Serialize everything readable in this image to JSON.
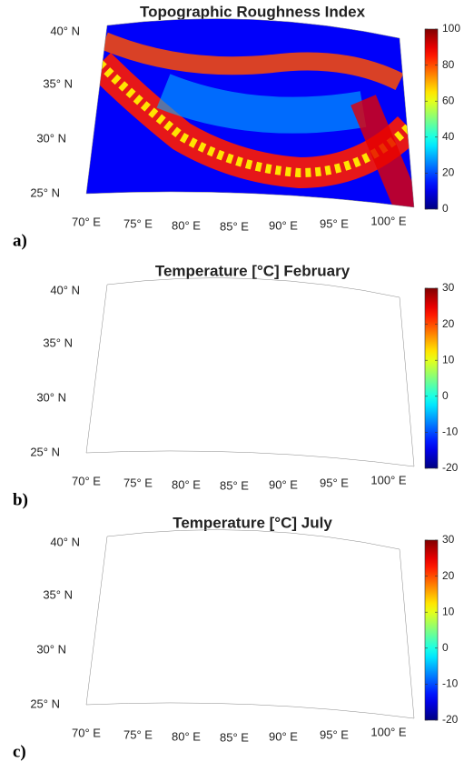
{
  "panels": [
    {
      "label": "a)",
      "title": "Topographic Roughness Index",
      "lat_labels": [
        "40° N",
        "35° N",
        "30° N",
        "25° N"
      ],
      "lon_labels": [
        "70° E",
        "75° E",
        "80° E",
        "85° E",
        "90° E",
        "95° E",
        "100° E"
      ],
      "colorbar": {
        "lim": [
          0,
          100
        ],
        "ticks": [
          0,
          20,
          40,
          60,
          80,
          100
        ],
        "colormap": "jet"
      }
    },
    {
      "label": "b)",
      "title": "Temperature [°C] February",
      "lat_labels": [
        "40° N",
        "35° N",
        "30° N",
        "25° N"
      ],
      "lon_labels": [
        "70° E",
        "75° E",
        "80° E",
        "85° E",
        "90° E",
        "95° E",
        "100° E"
      ],
      "colorbar": {
        "lim": [
          -20,
          30
        ],
        "ticks": [
          -20,
          -10,
          0,
          10,
          20,
          30
        ],
        "colormap": "jet"
      }
    },
    {
      "label": "c)",
      "title": "Temperature [°C] July",
      "lat_labels": [
        "40° N",
        "35° N",
        "30° N",
        "25° N"
      ],
      "lon_labels": [
        "70° E",
        "75° E",
        "80° E",
        "85° E",
        "90° E",
        "95° E",
        "100° E"
      ],
      "colorbar": {
        "lim": [
          -20,
          30
        ],
        "ticks": [
          -20,
          -10,
          0,
          10,
          20,
          30
        ],
        "colormap": "jet"
      }
    }
  ]
}
